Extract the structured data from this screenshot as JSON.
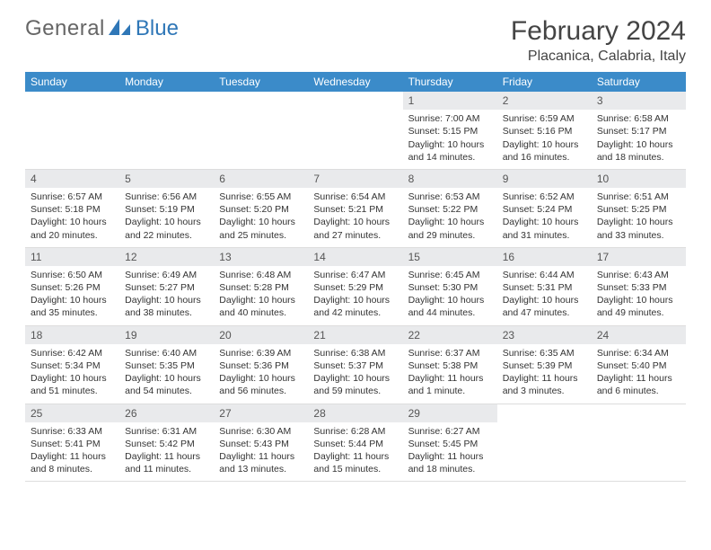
{
  "colors": {
    "header_bg": "#3b8bc9",
    "header_fg": "#ffffff",
    "daynum_bg": "#e9eaec",
    "daynum_fg": "#555555",
    "text": "#333333",
    "rule": "#dddddd",
    "logo_blue": "#2f77b7",
    "logo_gray": "#666666",
    "bg": "#ffffff"
  },
  "logo": {
    "general": "General",
    "blue": "Blue"
  },
  "title": "February 2024",
  "location": "Placanica, Calabria, Italy",
  "weekdays": [
    "Sunday",
    "Monday",
    "Tuesday",
    "Wednesday",
    "Thursday",
    "Friday",
    "Saturday"
  ],
  "weeks": [
    [
      {
        "n": "",
        "sr": "",
        "ss": "",
        "dl": ""
      },
      {
        "n": "",
        "sr": "",
        "ss": "",
        "dl": ""
      },
      {
        "n": "",
        "sr": "",
        "ss": "",
        "dl": ""
      },
      {
        "n": "",
        "sr": "",
        "ss": "",
        "dl": ""
      },
      {
        "n": "1",
        "sr": "Sunrise: 7:00 AM",
        "ss": "Sunset: 5:15 PM",
        "dl": "Daylight: 10 hours and 14 minutes."
      },
      {
        "n": "2",
        "sr": "Sunrise: 6:59 AM",
        "ss": "Sunset: 5:16 PM",
        "dl": "Daylight: 10 hours and 16 minutes."
      },
      {
        "n": "3",
        "sr": "Sunrise: 6:58 AM",
        "ss": "Sunset: 5:17 PM",
        "dl": "Daylight: 10 hours and 18 minutes."
      }
    ],
    [
      {
        "n": "4",
        "sr": "Sunrise: 6:57 AM",
        "ss": "Sunset: 5:18 PM",
        "dl": "Daylight: 10 hours and 20 minutes."
      },
      {
        "n": "5",
        "sr": "Sunrise: 6:56 AM",
        "ss": "Sunset: 5:19 PM",
        "dl": "Daylight: 10 hours and 22 minutes."
      },
      {
        "n": "6",
        "sr": "Sunrise: 6:55 AM",
        "ss": "Sunset: 5:20 PM",
        "dl": "Daylight: 10 hours and 25 minutes."
      },
      {
        "n": "7",
        "sr": "Sunrise: 6:54 AM",
        "ss": "Sunset: 5:21 PM",
        "dl": "Daylight: 10 hours and 27 minutes."
      },
      {
        "n": "8",
        "sr": "Sunrise: 6:53 AM",
        "ss": "Sunset: 5:22 PM",
        "dl": "Daylight: 10 hours and 29 minutes."
      },
      {
        "n": "9",
        "sr": "Sunrise: 6:52 AM",
        "ss": "Sunset: 5:24 PM",
        "dl": "Daylight: 10 hours and 31 minutes."
      },
      {
        "n": "10",
        "sr": "Sunrise: 6:51 AM",
        "ss": "Sunset: 5:25 PM",
        "dl": "Daylight: 10 hours and 33 minutes."
      }
    ],
    [
      {
        "n": "11",
        "sr": "Sunrise: 6:50 AM",
        "ss": "Sunset: 5:26 PM",
        "dl": "Daylight: 10 hours and 35 minutes."
      },
      {
        "n": "12",
        "sr": "Sunrise: 6:49 AM",
        "ss": "Sunset: 5:27 PM",
        "dl": "Daylight: 10 hours and 38 minutes."
      },
      {
        "n": "13",
        "sr": "Sunrise: 6:48 AM",
        "ss": "Sunset: 5:28 PM",
        "dl": "Daylight: 10 hours and 40 minutes."
      },
      {
        "n": "14",
        "sr": "Sunrise: 6:47 AM",
        "ss": "Sunset: 5:29 PM",
        "dl": "Daylight: 10 hours and 42 minutes."
      },
      {
        "n": "15",
        "sr": "Sunrise: 6:45 AM",
        "ss": "Sunset: 5:30 PM",
        "dl": "Daylight: 10 hours and 44 minutes."
      },
      {
        "n": "16",
        "sr": "Sunrise: 6:44 AM",
        "ss": "Sunset: 5:31 PM",
        "dl": "Daylight: 10 hours and 47 minutes."
      },
      {
        "n": "17",
        "sr": "Sunrise: 6:43 AM",
        "ss": "Sunset: 5:33 PM",
        "dl": "Daylight: 10 hours and 49 minutes."
      }
    ],
    [
      {
        "n": "18",
        "sr": "Sunrise: 6:42 AM",
        "ss": "Sunset: 5:34 PM",
        "dl": "Daylight: 10 hours and 51 minutes."
      },
      {
        "n": "19",
        "sr": "Sunrise: 6:40 AM",
        "ss": "Sunset: 5:35 PM",
        "dl": "Daylight: 10 hours and 54 minutes."
      },
      {
        "n": "20",
        "sr": "Sunrise: 6:39 AM",
        "ss": "Sunset: 5:36 PM",
        "dl": "Daylight: 10 hours and 56 minutes."
      },
      {
        "n": "21",
        "sr": "Sunrise: 6:38 AM",
        "ss": "Sunset: 5:37 PM",
        "dl": "Daylight: 10 hours and 59 minutes."
      },
      {
        "n": "22",
        "sr": "Sunrise: 6:37 AM",
        "ss": "Sunset: 5:38 PM",
        "dl": "Daylight: 11 hours and 1 minute."
      },
      {
        "n": "23",
        "sr": "Sunrise: 6:35 AM",
        "ss": "Sunset: 5:39 PM",
        "dl": "Daylight: 11 hours and 3 minutes."
      },
      {
        "n": "24",
        "sr": "Sunrise: 6:34 AM",
        "ss": "Sunset: 5:40 PM",
        "dl": "Daylight: 11 hours and 6 minutes."
      }
    ],
    [
      {
        "n": "25",
        "sr": "Sunrise: 6:33 AM",
        "ss": "Sunset: 5:41 PM",
        "dl": "Daylight: 11 hours and 8 minutes."
      },
      {
        "n": "26",
        "sr": "Sunrise: 6:31 AM",
        "ss": "Sunset: 5:42 PM",
        "dl": "Daylight: 11 hours and 11 minutes."
      },
      {
        "n": "27",
        "sr": "Sunrise: 6:30 AM",
        "ss": "Sunset: 5:43 PM",
        "dl": "Daylight: 11 hours and 13 minutes."
      },
      {
        "n": "28",
        "sr": "Sunrise: 6:28 AM",
        "ss": "Sunset: 5:44 PM",
        "dl": "Daylight: 11 hours and 15 minutes."
      },
      {
        "n": "29",
        "sr": "Sunrise: 6:27 AM",
        "ss": "Sunset: 5:45 PM",
        "dl": "Daylight: 11 hours and 18 minutes."
      },
      {
        "n": "",
        "sr": "",
        "ss": "",
        "dl": ""
      },
      {
        "n": "",
        "sr": "",
        "ss": "",
        "dl": ""
      }
    ]
  ]
}
